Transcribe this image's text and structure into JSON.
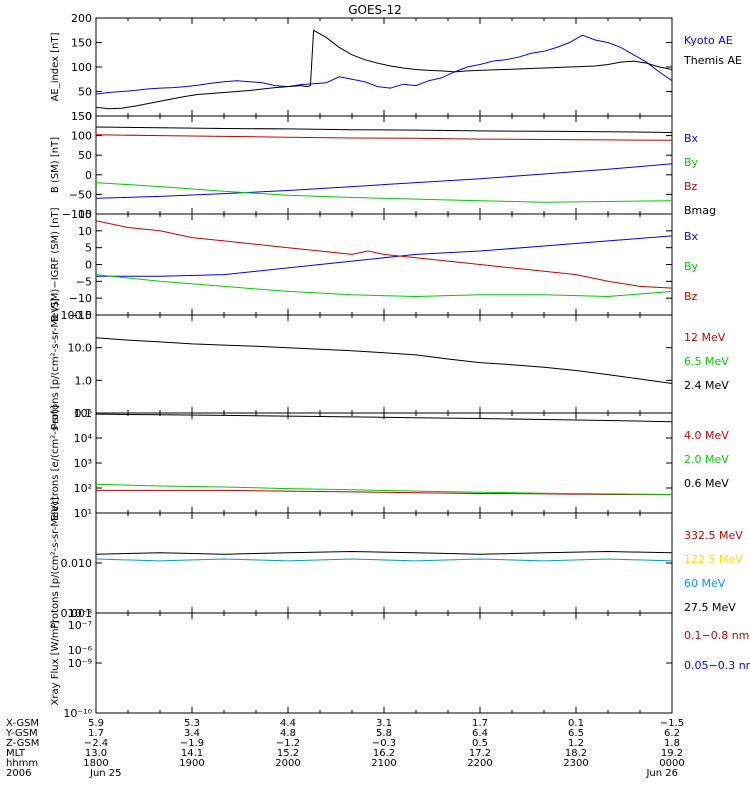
{
  "title": "GOES-12",
  "chart_data": [
    {
      "type": "line",
      "ylabel": "AE_index [nT]",
      "ylim": [
        0,
        200
      ],
      "log": false,
      "yticks": [
        {
          "v": 0,
          "label": "0"
        },
        {
          "v": 50,
          "label": "50"
        },
        {
          "v": 100,
          "label": "100"
        },
        {
          "v": 150,
          "label": "150"
        },
        {
          "v": 200,
          "label": "200"
        }
      ],
      "series": [
        {
          "name": "Kyoto AE",
          "color": "#0000ff",
          "x": [
            0,
            4,
            8,
            12,
            16,
            20,
            24,
            28,
            32,
            36,
            40,
            44,
            48,
            52,
            56,
            60,
            64,
            68,
            72,
            76,
            80,
            84,
            88,
            92,
            96,
            100,
            104,
            108,
            112,
            116,
            120,
            124,
            128,
            132,
            136,
            140,
            144,
            148,
            152,
            156,
            160,
            164,
            168,
            172,
            176,
            180
          ],
          "y": [
            45,
            48,
            50,
            52,
            55,
            57,
            58,
            60,
            63,
            67,
            70,
            72,
            70,
            68,
            62,
            60,
            64,
            66,
            68,
            80,
            75,
            70,
            60,
            57,
            65,
            62,
            72,
            78,
            90,
            100,
            105,
            112,
            115,
            120,
            128,
            132,
            140,
            150,
            165,
            155,
            150,
            140,
            125,
            110,
            90,
            72
          ]
        },
        {
          "name": "Themis AE",
          "color": "#000000",
          "x": [
            0,
            4,
            8,
            12,
            16,
            20,
            24,
            28,
            32,
            36,
            40,
            44,
            48,
            52,
            56,
            60,
            64,
            66,
            67,
            68,
            72,
            76,
            80,
            84,
            88,
            92,
            96,
            100,
            104,
            108,
            112,
            116,
            120,
            124,
            128,
            132,
            136,
            140,
            144,
            148,
            152,
            156,
            160,
            164,
            168,
            172,
            176,
            180
          ],
          "y": [
            18,
            15,
            16,
            20,
            25,
            30,
            35,
            40,
            44,
            46,
            48,
            50,
            52,
            55,
            58,
            60,
            62,
            60,
            62,
            175,
            160,
            140,
            125,
            115,
            108,
            102,
            98,
            95,
            93,
            92,
            90,
            92,
            93,
            94,
            95,
            96,
            97,
            98,
            99,
            100,
            101,
            102,
            105,
            110,
            112,
            108,
            100,
            95
          ]
        }
      ]
    },
    {
      "type": "line",
      "ylabel": "B (SM) [nT]",
      "ylim": [
        -100,
        150
      ],
      "log": false,
      "yticks": [
        {
          "v": -100,
          "label": "−100"
        },
        {
          "v": -50,
          "label": "−50"
        },
        {
          "v": 0,
          "label": "0"
        },
        {
          "v": 50,
          "label": "50"
        },
        {
          "v": 100,
          "label": "100"
        },
        {
          "v": 150,
          "label": "150"
        }
      ],
      "series": [
        {
          "name": "Bx",
          "color": "#0000ff",
          "x": [
            0,
            20,
            40,
            60,
            80,
            100,
            120,
            140,
            160,
            180
          ],
          "y": [
            -60,
            -55,
            -48,
            -40,
            -30,
            -20,
            -10,
            2,
            14,
            28
          ]
        },
        {
          "name": "By",
          "color": "#00cc00",
          "x": [
            0,
            20,
            40,
            60,
            80,
            100,
            120,
            140,
            160,
            180
          ],
          "y": [
            -20,
            -30,
            -42,
            -52,
            -58,
            -62,
            -66,
            -70,
            -68,
            -66
          ]
        },
        {
          "name": "Bz",
          "color": "#cc0000",
          "x": [
            0,
            20,
            40,
            60,
            80,
            100,
            120,
            140,
            160,
            180
          ],
          "y": [
            102,
            100,
            98,
            96,
            94,
            93,
            91,
            90,
            89,
            88
          ]
        },
        {
          "name": "Bmag",
          "color": "#000000",
          "x": [
            0,
            20,
            40,
            60,
            80,
            100,
            120,
            140,
            160,
            180
          ],
          "y": [
            122,
            120,
            118,
            117,
            115,
            114,
            112,
            111,
            110,
            108
          ]
        }
      ]
    },
    {
      "type": "line",
      "ylabel": "B (SM)−IGRF (SM) [nT]",
      "ylim": [
        -15,
        15
      ],
      "log": false,
      "yticks": [
        {
          "v": -15,
          "label": "−15"
        },
        {
          "v": -10,
          "label": "−10"
        },
        {
          "v": -5,
          "label": "−5"
        },
        {
          "v": 0,
          "label": "0"
        },
        {
          "v": 5,
          "label": "5"
        },
        {
          "v": 10,
          "label": "10"
        },
        {
          "v": 15,
          "label": "15"
        }
      ],
      "series": [
        {
          "name": "Bx",
          "color": "#0000ff",
          "x": [
            0,
            20,
            40,
            60,
            80,
            100,
            120,
            140,
            160,
            180
          ],
          "y": [
            -3.5,
            -3.5,
            -3,
            -1,
            1,
            3,
            4,
            5.5,
            7,
            8.5
          ]
        },
        {
          "name": "By",
          "color": "#00cc00",
          "x": [
            0,
            20,
            40,
            60,
            80,
            100,
            120,
            140,
            160,
            180
          ],
          "y": [
            -3,
            -5,
            -6.5,
            -8,
            -9,
            -9.5,
            -9,
            -9,
            -9.5,
            -8
          ]
        },
        {
          "name": "Bz",
          "color": "#cc0000",
          "x": [
            0,
            10,
            20,
            30,
            40,
            50,
            60,
            70,
            80,
            85,
            90,
            100,
            110,
            120,
            130,
            140,
            150,
            160,
            170,
            180
          ],
          "y": [
            13,
            11,
            10,
            8,
            7,
            6,
            5,
            4,
            3,
            4,
            3,
            2,
            1,
            0,
            -1,
            -2,
            -3,
            -5,
            -6.5,
            -7
          ]
        }
      ]
    },
    {
      "type": "line",
      "ylabel": "Protons [p/(cm²-s-sr-MeV)]",
      "ylim": [
        0.1,
        100
      ],
      "log": true,
      "yticks": [
        {
          "v": 0.1,
          "label": "0.1"
        },
        {
          "v": 1,
          "label": "1.0"
        },
        {
          "v": 10,
          "label": "10.0"
        },
        {
          "v": 100,
          "label": "100.0"
        }
      ],
      "series": [
        {
          "name": "12 MeV",
          "color": "#cc0000",
          "x": [],
          "y": []
        },
        {
          "name": "6.5 MeV",
          "color": "#00cc00",
          "x": [],
          "y": []
        },
        {
          "name": "2.4 MeV",
          "color": "#000000",
          "x": [
            0,
            10,
            20,
            30,
            40,
            50,
            60,
            70,
            80,
            90,
            100,
            110,
            120,
            130,
            140,
            150,
            160,
            170,
            180
          ],
          "y": [
            20,
            17,
            15,
            13,
            12,
            11,
            10,
            9,
            8,
            7,
            6,
            4.5,
            3.5,
            3,
            2.5,
            2,
            1.5,
            1.1,
            0.8
          ]
        }
      ]
    },
    {
      "type": "line",
      "ylabel": "Electrons [e/(cm²-s-sr)]",
      "ylim": [
        10,
        100000
      ],
      "log": true,
      "yticks": [
        {
          "v": 10,
          "label": "10¹"
        },
        {
          "v": 100,
          "label": "10²"
        },
        {
          "v": 1000,
          "label": "10³"
        },
        {
          "v": 10000,
          "label": "10⁴"
        },
        {
          "v": 100000,
          "label": "10⁵"
        }
      ],
      "series": [
        {
          "name": "4.0 MeV",
          "color": "#cc0000",
          "x": [
            0,
            20,
            40,
            60,
            80,
            100,
            120,
            140,
            160,
            180
          ],
          "y": [
            80,
            80,
            80,
            75,
            70,
            65,
            60,
            58,
            55,
            55
          ]
        },
        {
          "name": "2.0 MeV",
          "color": "#00cc00",
          "x": [
            0,
            20,
            40,
            60,
            80,
            100,
            120,
            140,
            160,
            180
          ],
          "y": [
            140,
            120,
            110,
            95,
            85,
            75,
            68,
            62,
            58,
            55
          ]
        },
        {
          "name": "0.6 MeV",
          "color": "#000000",
          "x": [
            0,
            20,
            40,
            60,
            80,
            100,
            120,
            140,
            160,
            180
          ],
          "y": [
            90000,
            85000,
            80000,
            75000,
            70000,
            65000,
            60000,
            55000,
            50000,
            45000
          ]
        }
      ]
    },
    {
      "type": "line",
      "ylabel": "Protons [p/(cm²-s-sr-MeV)]",
      "ylim": [
        0.001,
        0.1
      ],
      "log": true,
      "yticks": [
        {
          "v": 0.001,
          "label": "0.001"
        },
        {
          "v": 0.01,
          "label": "0.010"
        }
      ],
      "series": [
        {
          "name": "332.5 MeV",
          "color": "#cc0000",
          "x": [],
          "y": []
        },
        {
          "name": "122.5 MeV",
          "color": "#ffdd00",
          "x": [],
          "y": []
        },
        {
          "name": "60 MeV",
          "color": "#0099dd",
          "x": [
            0,
            20,
            40,
            60,
            80,
            100,
            120,
            140,
            160,
            180
          ],
          "y": [
            0.012,
            0.011,
            0.012,
            0.011,
            0.012,
            0.011,
            0.012,
            0.011,
            0.012,
            0.011
          ]
        },
        {
          "name": "27.5 MeV",
          "color": "#000000",
          "x": [
            0,
            20,
            40,
            60,
            80,
            100,
            120,
            140,
            160,
            180
          ],
          "y": [
            0.015,
            0.016,
            0.015,
            0.016,
            0.017,
            0.016,
            0.015,
            0.016,
            0.017,
            0.016
          ]
        }
      ]
    },
    {
      "type": "line",
      "ylabel": "Xray Flux [W/m²]",
      "ylim": [
        1e-10,
        1e-08
      ],
      "log": true,
      "yticks": [
        {
          "v": 1e-10,
          "label": "10⁻¹⁰"
        },
        {
          "v": 1e-09,
          "label": "10⁻⁹"
        },
        {
          "v": 1e-08,
          "label": "10⁻⁸"
        }
      ],
      "extra_tick_labels": [
        "10⁻⁷",
        "10⁻⁶"
      ],
      "series": [
        {
          "name": "0.1−0.8 nm",
          "color": "#cc0000",
          "x": [],
          "y": []
        },
        {
          "name": "0.05−0.3 nm",
          "color": "#0000ff",
          "x": [],
          "y": []
        }
      ]
    }
  ],
  "xaxis": {
    "rows": [
      {
        "label": "X-GSM",
        "values": [
          "5.9",
          "5.3",
          "4.4",
          "3.1",
          "1.7",
          "0.1",
          "−1.5"
        ]
      },
      {
        "label": "Y-GSM",
        "values": [
          "1.7",
          "3.4",
          "4.8",
          "5.8",
          "6.4",
          "6.5",
          "6.2"
        ]
      },
      {
        "label": "Z-GSM",
        "values": [
          "−2.4",
          "−1.9",
          "−1.2",
          "−0.3",
          "0.5",
          "1.2",
          "1.8"
        ]
      },
      {
        "label": "MLT",
        "values": [
          "13.0",
          "14.1",
          "15.2",
          "16.2",
          "17.2",
          "18.2",
          "19.2"
        ]
      },
      {
        "label": "hhmm",
        "values": [
          "1800",
          "1900",
          "2000",
          "2100",
          "2200",
          "2300",
          "0000"
        ]
      },
      {
        "label": "2006",
        "values": [
          "Jun 25",
          "",
          "",
          "",
          "",
          "",
          "Jun 26"
        ]
      }
    ]
  }
}
